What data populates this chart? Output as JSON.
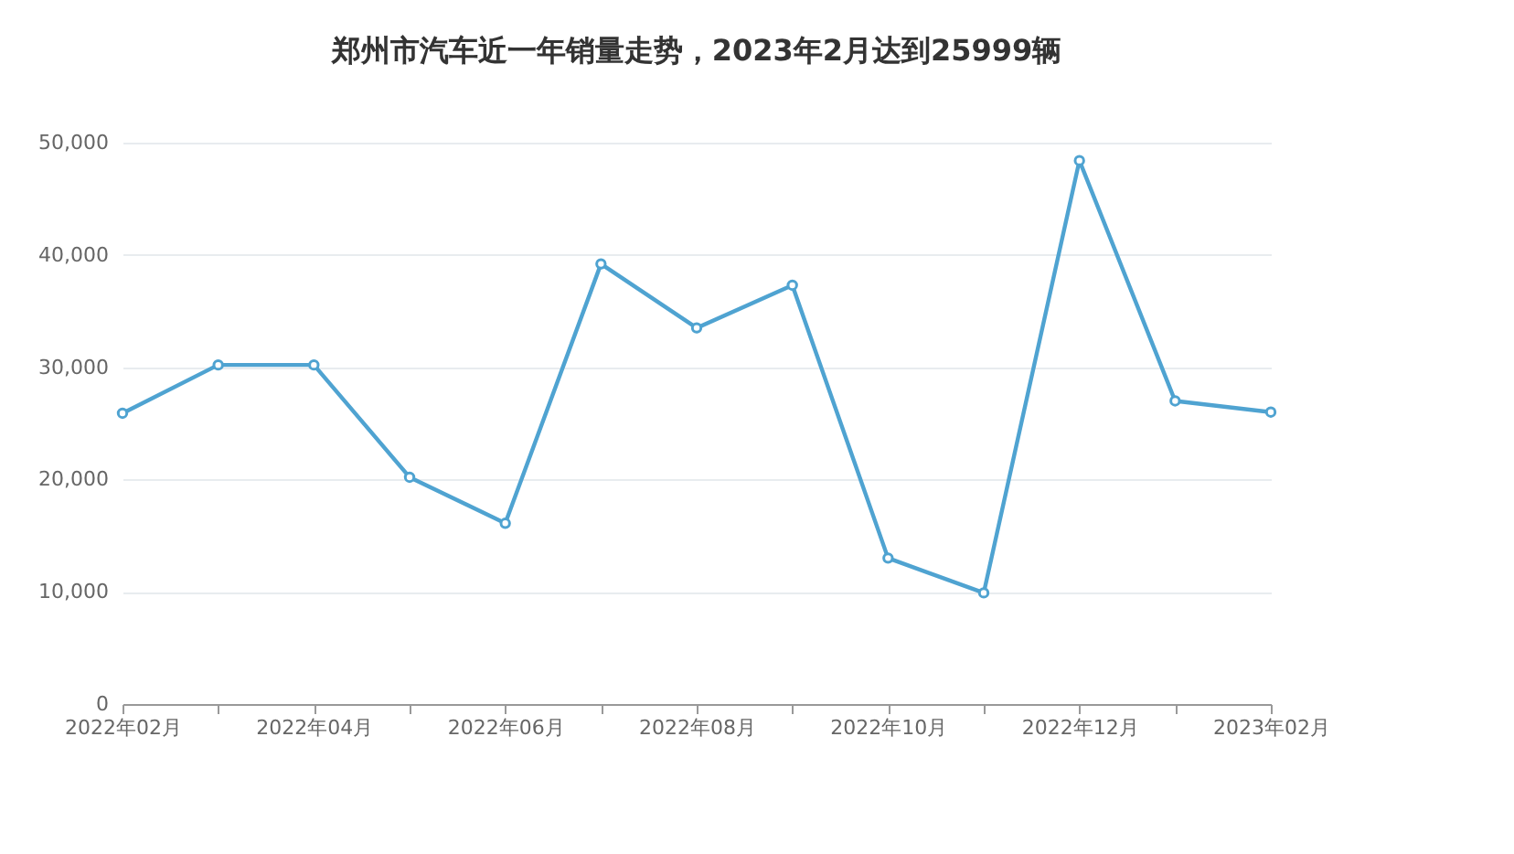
{
  "chart_data": {
    "type": "line",
    "title": "郑州市汽车近一年销量走势，2023年2月达到25999辆",
    "categories": [
      "2022年02月",
      null,
      "2022年04月",
      null,
      "2022年06月",
      null,
      "2022年08月",
      null,
      "2022年10月",
      null,
      "2022年12月",
      null,
      "2023年02月"
    ],
    "series": [
      {
        "color": "#4fa3d1",
        "values": [
          25900,
          30200,
          30200,
          20200,
          16100,
          39200,
          33500,
          37300,
          13000,
          9900,
          48400,
          27000,
          25999
        ]
      }
    ],
    "ylim": [
      0,
      50000
    ],
    "yticks": [
      0,
      {
        "value": 10000,
        "label": "10,000"
      },
      {
        "value": 20000,
        "label": "20,000"
      },
      {
        "value": 30000,
        "label": "30,000"
      },
      {
        "value": 40000,
        "label": "40,000"
      },
      {
        "value": 50000,
        "label": "50,000"
      }
    ],
    "grid": "y",
    "marker": "circle",
    "line_style": "solid"
  }
}
